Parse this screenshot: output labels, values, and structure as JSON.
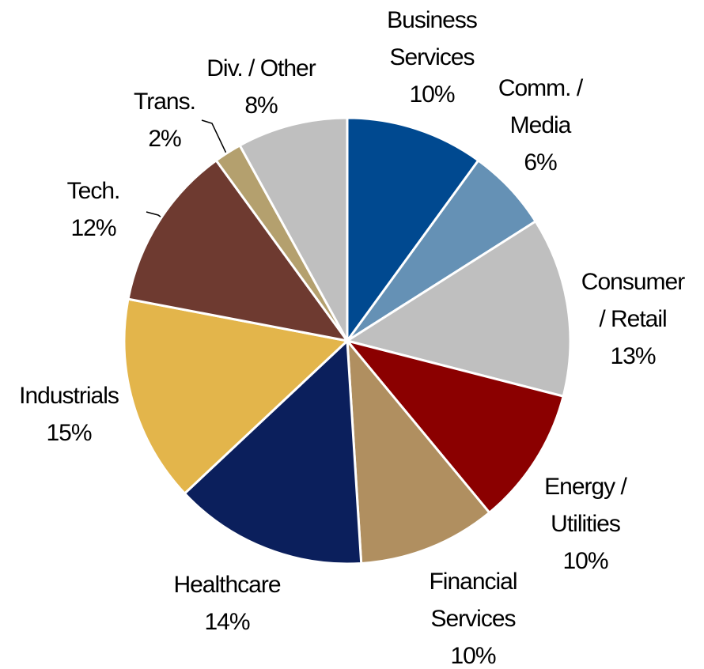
{
  "chart_data": {
    "type": "pie",
    "categories": [
      [
        "Business",
        "Services"
      ],
      [
        "Comm. /",
        "Media"
      ],
      [
        "Consumer",
        "/ Retail"
      ],
      [
        "Energy /",
        "Utilities"
      ],
      [
        "Financial",
        "Services"
      ],
      [
        "Healthcare"
      ],
      [
        "Industrials"
      ],
      [
        "Tech."
      ],
      [
        "Trans."
      ],
      [
        "Div. / Other"
      ]
    ],
    "values": [
      10,
      6,
      13,
      10,
      10,
      14,
      15,
      12,
      2,
      8
    ],
    "value_labels": [
      "10%",
      "6%",
      "13%",
      "10%",
      "10%",
      "14%",
      "15%",
      "12%",
      "2%",
      "8%"
    ],
    "colors": [
      "#004990",
      "#6591b5",
      "#bfbfbf",
      "#8b0000",
      "#b08f60",
      "#0b1f5c",
      "#e3b54b",
      "#6e3a30",
      "#b4a06e",
      "#bfbfbf"
    ]
  }
}
